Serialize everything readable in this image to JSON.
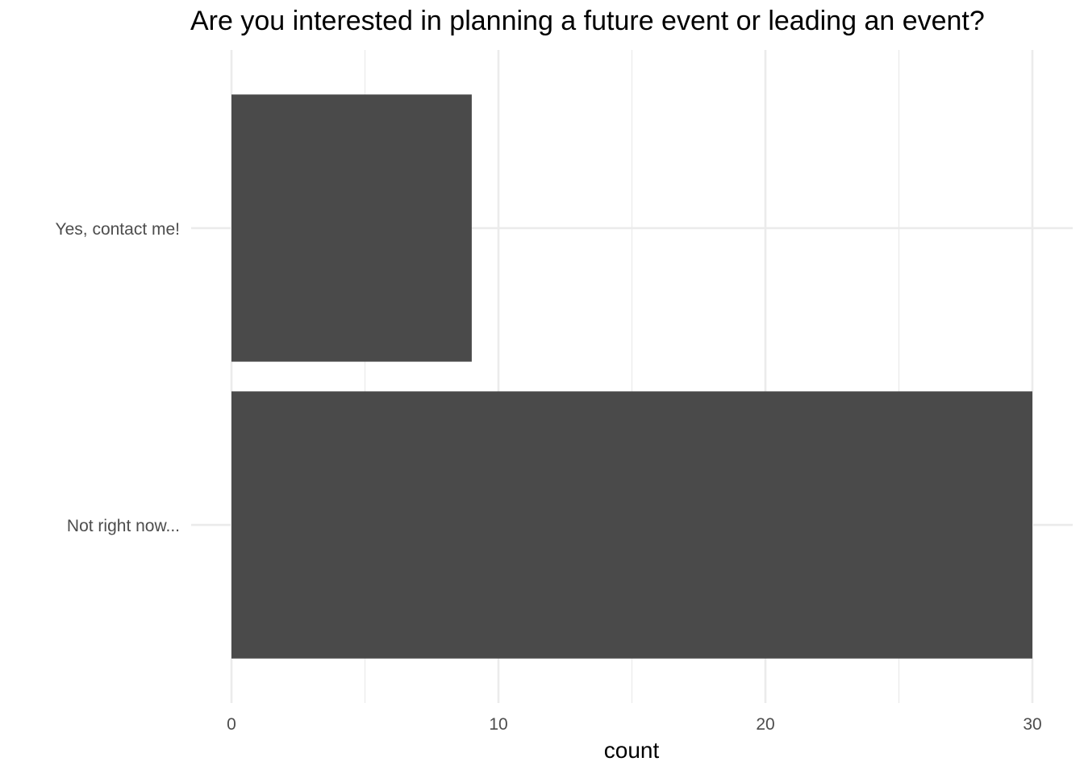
{
  "chart_data": {
    "type": "bar",
    "orientation": "horizontal",
    "title": "Are you interested in planning a future event or leading an event?",
    "xlabel": "count",
    "ylabel": "",
    "categories": [
      "Yes, contact me!",
      "Not right now..."
    ],
    "values": [
      9,
      30
    ],
    "xlim": [
      0,
      30
    ],
    "x_ticks": [
      "0",
      "10",
      "20",
      "30"
    ],
    "grid": true,
    "bar_color": "#4a4a4a",
    "grid_color": "#ebebeb"
  }
}
